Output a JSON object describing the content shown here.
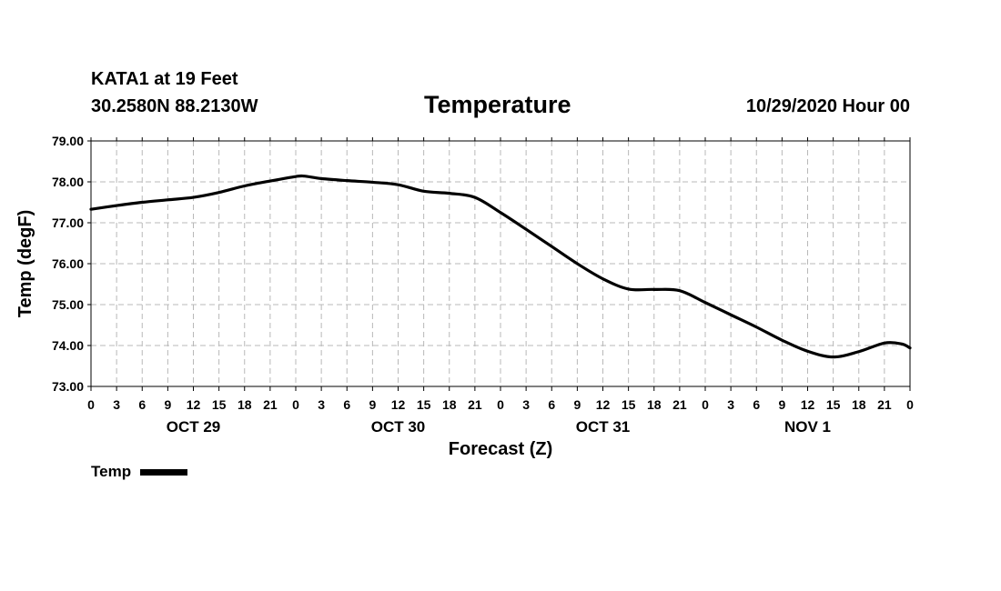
{
  "header": {
    "station": "KATA1 at 19 Feet",
    "coords": "30.2580N 88.2130W",
    "title": "Temperature",
    "run": "10/29/2020 Hour 00"
  },
  "legend": {
    "label": "Temp"
  },
  "chart_data": {
    "type": "line",
    "title": "Temperature",
    "xlabel": "Forecast (Z)",
    "ylabel": "Temp (degF)",
    "ylim": [
      73.0,
      79.0
    ],
    "xlim": [
      0,
      96
    ],
    "grid": true,
    "legend_position": "bottom-left",
    "y_ticks": [
      "73.00",
      "74.00",
      "75.00",
      "76.00",
      "77.00",
      "78.00",
      "79.00"
    ],
    "x_tick_hours": [
      0,
      3,
      6,
      9,
      12,
      15,
      18,
      21,
      24,
      27,
      30,
      33,
      36,
      39,
      42,
      45,
      48,
      51,
      54,
      57,
      60,
      63,
      66,
      69,
      72,
      75,
      78,
      81,
      84,
      87,
      90,
      93,
      96
    ],
    "x_tick_labels": [
      "0",
      "3",
      "6",
      "9",
      "12",
      "15",
      "18",
      "21",
      "0",
      "3",
      "6",
      "9",
      "12",
      "15",
      "18",
      "21",
      "0",
      "3",
      "6",
      "9",
      "12",
      "15",
      "18",
      "21",
      "0",
      "3",
      "6",
      "9",
      "12",
      "15",
      "18",
      "21",
      "0"
    ],
    "day_labels": [
      {
        "label": "OCT 29",
        "hour": 12
      },
      {
        "label": "OCT 30",
        "hour": 36
      },
      {
        "label": "OCT 31",
        "hour": 60
      },
      {
        "label": "NOV 1",
        "hour": 84
      }
    ],
    "series": [
      {
        "name": "Temp",
        "x": [
          0,
          3,
          6,
          9,
          12,
          15,
          18,
          21,
          24,
          25,
          27,
          30,
          33,
          36,
          39,
          42,
          45,
          48,
          51,
          54,
          57,
          60,
          63,
          66,
          69,
          72,
          75,
          78,
          81,
          84,
          87,
          90,
          93,
          95,
          96
        ],
        "y": [
          77.33,
          77.42,
          77.5,
          77.56,
          77.62,
          77.74,
          77.9,
          78.02,
          78.13,
          78.14,
          78.08,
          78.03,
          77.99,
          77.93,
          77.77,
          77.72,
          77.62,
          77.25,
          76.84,
          76.42,
          76.0,
          75.63,
          75.38,
          75.37,
          75.34,
          75.05,
          74.75,
          74.45,
          74.13,
          73.86,
          73.72,
          73.85,
          74.06,
          74.04,
          73.94
        ]
      }
    ]
  }
}
